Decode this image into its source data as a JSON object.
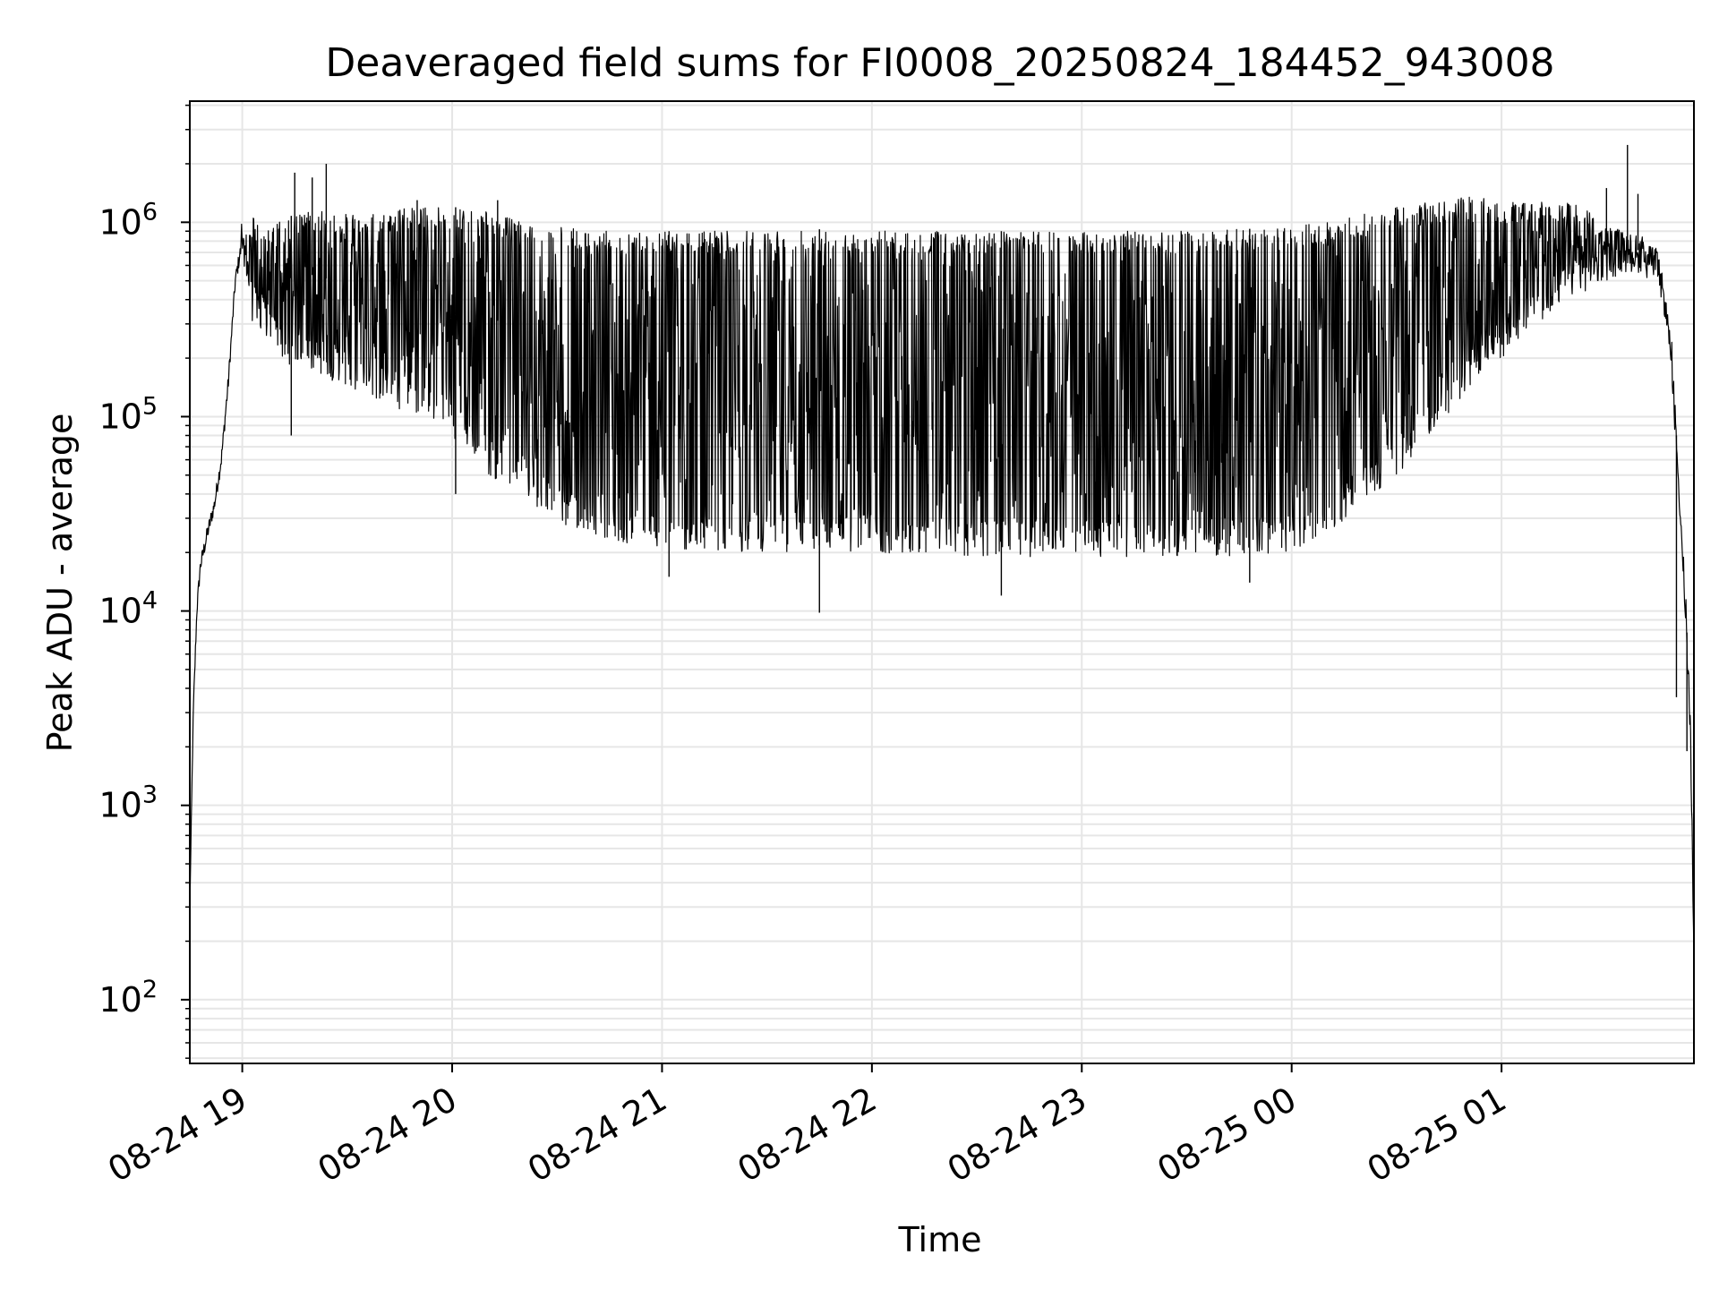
{
  "chart_data": {
    "type": "line",
    "title": "Deaveraged field sums for FI0008_20250824_184452_943008",
    "xlabel": "Time",
    "ylabel": "Peak ADU - average",
    "yscale": "log",
    "ylim": [
      47,
      4200000
    ],
    "xlim": [
      "2025-08-24 18:45",
      "2025-08-25 01:55"
    ],
    "grid": true,
    "grid_color": "#e6e6e6",
    "line_color": "#000000",
    "x_ticks": [
      {
        "value": "2025-08-24 19:00",
        "label": "08-24 19"
      },
      {
        "value": "2025-08-24 20:00",
        "label": "08-24 20"
      },
      {
        "value": "2025-08-24 21:00",
        "label": "08-24 21"
      },
      {
        "value": "2025-08-24 22:00",
        "label": "08-24 22"
      },
      {
        "value": "2025-08-24 23:00",
        "label": "08-24 23"
      },
      {
        "value": "2025-08-25 00:00",
        "label": "08-25 00"
      },
      {
        "value": "2025-08-25 01:00",
        "label": "08-25 01"
      }
    ],
    "y_ticks": [
      {
        "value": 100,
        "label": "10",
        "exp": "2"
      },
      {
        "value": 1000,
        "label": "10",
        "exp": "3"
      },
      {
        "value": 10000,
        "label": "10",
        "exp": "4"
      },
      {
        "value": 100000,
        "label": "10",
        "exp": "5"
      },
      {
        "value": 1000000,
        "label": "10",
        "exp": "6"
      }
    ],
    "series": [
      {
        "envelope": {
          "x": [
            "2025-08-24 18:45",
            "2025-08-24 18:46",
            "2025-08-24 18:47",
            "2025-08-24 18:48",
            "2025-08-24 18:50",
            "2025-08-24 18:52",
            "2025-08-24 18:54",
            "2025-08-24 18:56",
            "2025-08-24 18:58",
            "2025-08-24 19:00",
            "2025-08-24 19:03",
            "2025-08-24 19:05",
            "2025-08-24 19:07",
            "2025-08-24 19:10",
            "2025-08-24 19:15",
            "2025-08-24 19:20",
            "2025-08-24 19:30",
            "2025-08-24 19:40",
            "2025-08-24 19:50",
            "2025-08-24 20:00",
            "2025-08-24 20:10",
            "2025-08-24 20:20",
            "2025-08-24 20:30",
            "2025-08-24 20:40",
            "2025-08-24 20:50",
            "2025-08-24 21:00",
            "2025-08-24 21:10",
            "2025-08-24 21:20",
            "2025-08-24 21:30",
            "2025-08-24 21:40",
            "2025-08-24 21:50",
            "2025-08-24 22:00",
            "2025-08-24 22:15",
            "2025-08-24 22:30",
            "2025-08-24 22:45",
            "2025-08-24 23:00",
            "2025-08-24 23:15",
            "2025-08-24 23:30",
            "2025-08-24 23:45",
            "2025-08-25 00:00",
            "2025-08-25 00:10",
            "2025-08-25 00:20",
            "2025-08-25 00:30",
            "2025-08-25 00:40",
            "2025-08-25 00:50",
            "2025-08-25 01:00",
            "2025-08-25 01:05",
            "2025-08-25 01:10",
            "2025-08-25 01:15",
            "2025-08-25 01:20",
            "2025-08-25 01:25",
            "2025-08-25 01:30",
            "2025-08-25 01:35",
            "2025-08-25 01:40",
            "2025-08-25 01:45",
            "2025-08-25 01:48",
            "2025-08-25 01:50",
            "2025-08-25 01:52",
            "2025-08-25 01:54",
            "2025-08-25 01:55"
          ],
          "upper": [
            300,
            3000,
            10000,
            17000,
            25000,
            35000,
            60000,
            150000,
            500000,
            800000,
            1100000,
            950000,
            900000,
            1000000,
            1100000,
            1150000,
            1100000,
            1150000,
            1200000,
            1200000,
            1150000,
            1000000,
            950000,
            900000,
            900000,
            900000,
            900000,
            900000,
            900000,
            920000,
            920000,
            920000,
            900000,
            900000,
            900000,
            900000,
            900000,
            900000,
            920000,
            950000,
            1000000,
            1100000,
            1200000,
            1300000,
            1350000,
            1300000,
            1300000,
            1250000,
            1350000,
            1250000,
            1150000,
            1000000,
            900000,
            850000,
            700000,
            300000,
            80000,
            20000,
            3000,
            200
          ],
          "lower": [
            300,
            3000,
            10000,
            17000,
            25000,
            35000,
            60000,
            150000,
            500000,
            700000,
            300000,
            280000,
            250000,
            200000,
            180000,
            170000,
            140000,
            120000,
            100000,
            80000,
            50000,
            40000,
            28000,
            25000,
            22000,
            20000,
            20000,
            20000,
            20000,
            20000,
            20000,
            20000,
            19000,
            19000,
            19000,
            19000,
            19000,
            19000,
            19000,
            20000,
            25000,
            35000,
            50000,
            80000,
            130000,
            200000,
            250000,
            300000,
            350000,
            400000,
            450000,
            500000,
            550000,
            550000,
            450000,
            250000,
            60000,
            15000,
            2000,
            150
          ]
        },
        "spikes_low": [
          {
            "t": "2025-08-24 19:14",
            "v": 80000
          },
          {
            "t": "2025-08-24 20:01",
            "v": 40000
          },
          {
            "t": "2025-08-24 21:02",
            "v": 15000
          },
          {
            "t": "2025-08-24 21:45",
            "v": 9800
          },
          {
            "t": "2025-08-24 22:37",
            "v": 12000
          },
          {
            "t": "2025-08-24 23:48",
            "v": 14000
          },
          {
            "t": "2025-08-25 01:50",
            "v": 3600
          },
          {
            "t": "2025-08-25 01:53",
            "v": 1900
          }
        ],
        "spikes_high": [
          {
            "t": "2025-08-24 19:15",
            "v": 1800000
          },
          {
            "t": "2025-08-24 19:20",
            "v": 1700000
          },
          {
            "t": "2025-08-24 19:24",
            "v": 2000000
          },
          {
            "t": "2025-08-24 19:50",
            "v": 1300000
          },
          {
            "t": "2025-08-24 20:13",
            "v": 1300000
          },
          {
            "t": "2025-08-25 01:30",
            "v": 1500000
          },
          {
            "t": "2025-08-25 01:36",
            "v": 2500000
          },
          {
            "t": "2025-08-25 01:39",
            "v": 1400000
          }
        ]
      }
    ]
  }
}
